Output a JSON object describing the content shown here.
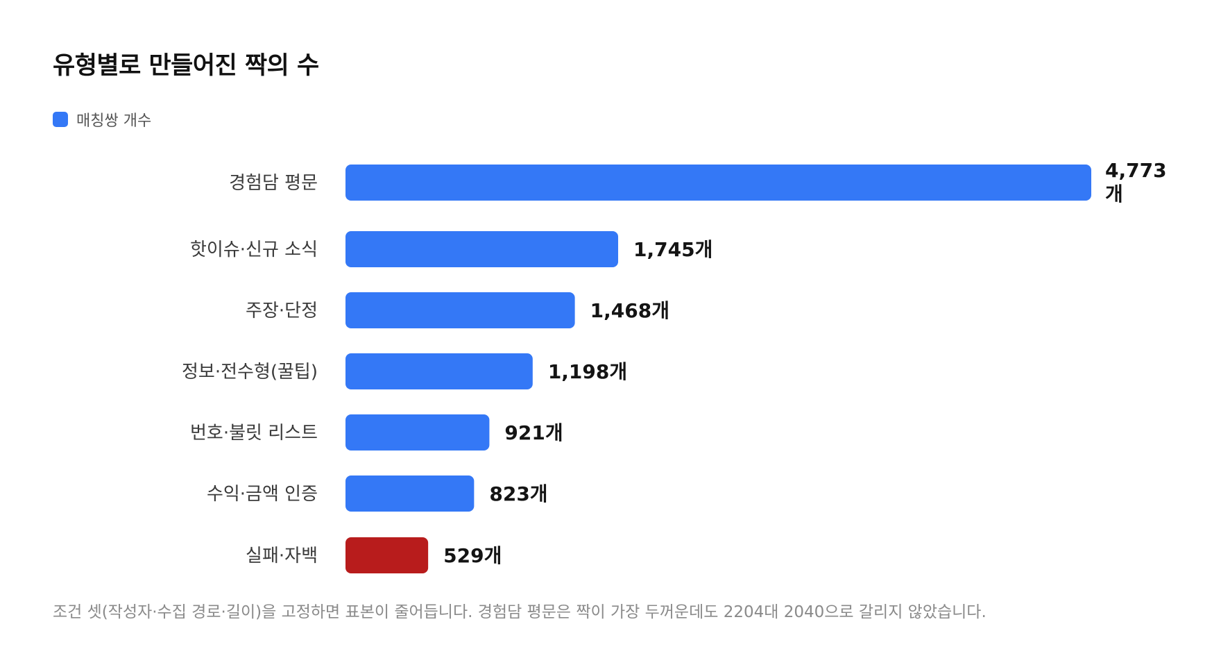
{
  "title": "유형별로 만들어진 짝의 수",
  "legend": {
    "label": "매칭쌍 개수",
    "color": "#3478f6"
  },
  "chart_data": {
    "type": "bar",
    "orientation": "horizontal",
    "series": [
      {
        "name": "매칭쌍 개수",
        "values": [
          4773,
          1745,
          1468,
          1198,
          921,
          823,
          529
        ]
      }
    ],
    "categories": [
      "경험담 평문",
      "핫이슈·신규 소식",
      "주장·단정",
      "정보·전수형(꿀팁)",
      "번호·불릿 리스트",
      "수익·금액 인증",
      "실패·자백"
    ],
    "value_labels": [
      "4,773개",
      "1,745개",
      "1,468개",
      "1,198개",
      "921개",
      "823개",
      "529개"
    ],
    "bar_colors": [
      "#3478f6",
      "#3478f6",
      "#3478f6",
      "#3478f6",
      "#3478f6",
      "#3478f6",
      "#b81c1c"
    ],
    "xlim": [
      0,
      4773
    ],
    "grid": false,
    "legend_position": "top-left"
  },
  "footnote": "조건 셋(작성자·수집 경로·길이)을 고정하면 표본이 줄어듭니다. 경험담 평문은 짝이 가장 두꺼운데도 2204대 2040으로 갈리지 않았습니다."
}
